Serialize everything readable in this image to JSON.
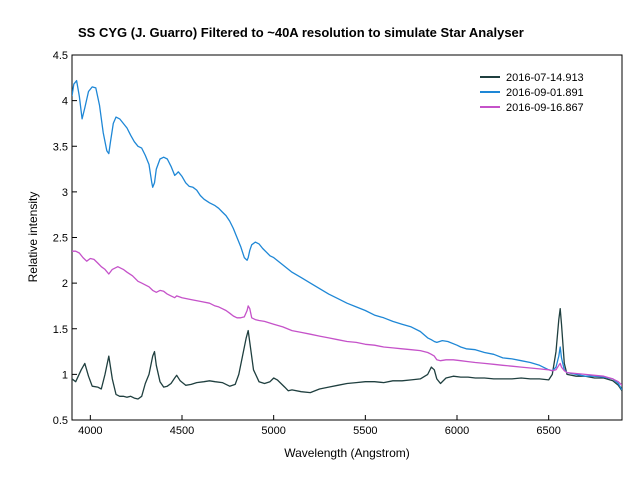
{
  "chart_data": {
    "type": "line",
    "title": "SS CYG    (J. Guarro)  Filtered to ~40A resolution to simulate Star Analyser",
    "xlabel": "Wavelength (Angstrom)",
    "ylabel": "Relative intensity",
    "xlim": [
      3900,
      6900
    ],
    "ylim": [
      0.5,
      4.5
    ],
    "xticks": [
      4000,
      4500,
      5000,
      5500,
      6000,
      6500
    ],
    "yticks": [
      0.5,
      1,
      1.5,
      2,
      2.5,
      3,
      3.5,
      4,
      4.5
    ],
    "xtick_labels": [
      "4000",
      "4500",
      "5000",
      "5500",
      "6000",
      "6500"
    ],
    "ytick_labels": [
      "0.5",
      "1",
      "1.5",
      "2",
      "2.5",
      "3",
      "3.5",
      "4",
      "4.5"
    ],
    "grid": false,
    "legend_position": "top-right",
    "series": [
      {
        "name": "2016-07-14.913",
        "color": "#1f3f3f",
        "x": [
          3900,
          3920,
          3950,
          3970,
          3990,
          4010,
          4040,
          4060,
          4080,
          4101,
          4120,
          4140,
          4160,
          4180,
          4200,
          4220,
          4240,
          4260,
          4280,
          4300,
          4320,
          4340,
          4350,
          4360,
          4380,
          4400,
          4420,
          4440,
          4460,
          4471,
          4490,
          4520,
          4550,
          4580,
          4620,
          4650,
          4680,
          4720,
          4760,
          4790,
          4810,
          4830,
          4850,
          4861,
          4870,
          4890,
          4920,
          4950,
          4980,
          5000,
          5020,
          5040,
          5060,
          5080,
          5100,
          5150,
          5200,
          5250,
          5300,
          5350,
          5400,
          5450,
          5500,
          5550,
          5600,
          5650,
          5700,
          5750,
          5800,
          5840,
          5860,
          5876,
          5890,
          5910,
          5940,
          5980,
          6020,
          6060,
          6100,
          6150,
          6200,
          6250,
          6300,
          6350,
          6400,
          6450,
          6500,
          6520,
          6540,
          6555,
          6563,
          6570,
          6585,
          6600,
          6650,
          6700,
          6750,
          6800,
          6850,
          6880,
          6900
        ],
        "values": [
          0.95,
          0.92,
          1.05,
          1.12,
          0.98,
          0.87,
          0.86,
          0.84,
          1.0,
          1.2,
          0.95,
          0.78,
          0.76,
          0.76,
          0.75,
          0.76,
          0.74,
          0.73,
          0.76,
          0.9,
          1.0,
          1.2,
          1.25,
          1.1,
          0.92,
          0.86,
          0.87,
          0.9,
          0.96,
          0.99,
          0.93,
          0.88,
          0.89,
          0.91,
          0.92,
          0.93,
          0.92,
          0.91,
          0.87,
          0.89,
          1.0,
          1.2,
          1.4,
          1.48,
          1.35,
          1.05,
          0.92,
          0.9,
          0.92,
          0.96,
          0.94,
          0.9,
          0.86,
          0.82,
          0.83,
          0.81,
          0.8,
          0.84,
          0.86,
          0.88,
          0.9,
          0.91,
          0.92,
          0.92,
          0.91,
          0.93,
          0.93,
          0.94,
          0.95,
          1.0,
          1.08,
          1.05,
          0.95,
          0.9,
          0.96,
          0.98,
          0.97,
          0.97,
          0.96,
          0.96,
          0.95,
          0.95,
          0.95,
          0.96,
          0.95,
          0.95,
          0.94,
          1.0,
          1.25,
          1.6,
          1.72,
          1.55,
          1.12,
          1.0,
          0.98,
          0.98,
          0.96,
          0.96,
          0.93,
          0.88,
          0.82
        ]
      },
      {
        "name": "2016-09-01.891",
        "color": "#1e87d6",
        "x": [
          3900,
          3910,
          3925,
          3940,
          3955,
          3970,
          3990,
          4010,
          4030,
          4050,
          4070,
          4090,
          4101,
          4110,
          4125,
          4140,
          4160,
          4180,
          4200,
          4220,
          4240,
          4260,
          4280,
          4300,
          4320,
          4335,
          4340,
          4350,
          4360,
          4380,
          4400,
          4420,
          4440,
          4460,
          4471,
          4480,
          4500,
          4520,
          4540,
          4560,
          4580,
          4600,
          4620,
          4650,
          4680,
          4700,
          4720,
          4740,
          4760,
          4780,
          4800,
          4820,
          4840,
          4855,
          4861,
          4870,
          4880,
          4900,
          4920,
          4940,
          4960,
          4980,
          5000,
          5050,
          5100,
          5150,
          5200,
          5250,
          5300,
          5350,
          5400,
          5450,
          5500,
          5550,
          5600,
          5650,
          5700,
          5750,
          5800,
          5840,
          5860,
          5876,
          5890,
          5920,
          5950,
          6000,
          6020,
          6050,
          6100,
          6150,
          6200,
          6250,
          6300,
          6350,
          6400,
          6450,
          6500,
          6520,
          6540,
          6555,
          6563,
          6570,
          6585,
          6600,
          6650,
          6700,
          6750,
          6800,
          6850,
          6880,
          6900
        ],
        "values": [
          4.05,
          4.18,
          4.22,
          4.05,
          3.8,
          3.92,
          4.1,
          4.15,
          4.14,
          3.95,
          3.65,
          3.45,
          3.42,
          3.55,
          3.75,
          3.82,
          3.8,
          3.75,
          3.7,
          3.62,
          3.55,
          3.5,
          3.48,
          3.4,
          3.3,
          3.1,
          3.05,
          3.1,
          3.25,
          3.36,
          3.38,
          3.36,
          3.28,
          3.18,
          3.2,
          3.22,
          3.17,
          3.1,
          3.06,
          3.05,
          3.02,
          2.96,
          2.92,
          2.88,
          2.85,
          2.82,
          2.78,
          2.74,
          2.68,
          2.6,
          2.5,
          2.4,
          2.28,
          2.25,
          2.28,
          2.36,
          2.42,
          2.45,
          2.43,
          2.38,
          2.34,
          2.3,
          2.28,
          2.2,
          2.12,
          2.06,
          2.0,
          1.94,
          1.88,
          1.83,
          1.78,
          1.74,
          1.7,
          1.65,
          1.62,
          1.58,
          1.55,
          1.52,
          1.47,
          1.4,
          1.38,
          1.36,
          1.35,
          1.37,
          1.36,
          1.32,
          1.3,
          1.28,
          1.27,
          1.24,
          1.22,
          1.18,
          1.17,
          1.15,
          1.13,
          1.1,
          1.05,
          1.04,
          1.08,
          1.2,
          1.3,
          1.18,
          1.05,
          1.02,
          1.0,
          0.98,
          0.98,
          0.97,
          0.95,
          0.9,
          0.83
        ]
      },
      {
        "name": "2016-09-16.867",
        "color": "#c552c9",
        "x": [
          3900,
          3920,
          3940,
          3960,
          3980,
          4000,
          4020,
          4040,
          4060,
          4080,
          4101,
          4120,
          4150,
          4180,
          4200,
          4230,
          4260,
          4280,
          4300,
          4320,
          4340,
          4360,
          4380,
          4400,
          4420,
          4440,
          4460,
          4471,
          4500,
          4550,
          4600,
          4650,
          4680,
          4700,
          4720,
          4740,
          4760,
          4780,
          4800,
          4820,
          4840,
          4855,
          4861,
          4870,
          4880,
          4900,
          4920,
          4950,
          5000,
          5050,
          5100,
          5150,
          5200,
          5250,
          5300,
          5350,
          5400,
          5450,
          5500,
          5550,
          5600,
          5650,
          5700,
          5750,
          5800,
          5840,
          5860,
          5876,
          5890,
          5910,
          5940,
          5980,
          6020,
          6060,
          6100,
          6150,
          6200,
          6250,
          6300,
          6350,
          6400,
          6450,
          6500,
          6520,
          6540,
          6555,
          6563,
          6570,
          6585,
          6600,
          6650,
          6700,
          6750,
          6800,
          6850,
          6880,
          6900
        ],
        "values": [
          2.35,
          2.35,
          2.33,
          2.28,
          2.24,
          2.27,
          2.26,
          2.22,
          2.18,
          2.15,
          2.1,
          2.15,
          2.18,
          2.15,
          2.12,
          2.08,
          2.02,
          2.0,
          1.98,
          1.96,
          1.92,
          1.9,
          1.92,
          1.91,
          1.88,
          1.86,
          1.84,
          1.86,
          1.84,
          1.82,
          1.8,
          1.78,
          1.75,
          1.74,
          1.72,
          1.7,
          1.67,
          1.64,
          1.62,
          1.62,
          1.63,
          1.7,
          1.75,
          1.72,
          1.62,
          1.6,
          1.59,
          1.58,
          1.55,
          1.52,
          1.48,
          1.46,
          1.44,
          1.42,
          1.4,
          1.38,
          1.36,
          1.35,
          1.33,
          1.32,
          1.3,
          1.29,
          1.28,
          1.27,
          1.26,
          1.24,
          1.22,
          1.2,
          1.16,
          1.15,
          1.16,
          1.16,
          1.15,
          1.14,
          1.13,
          1.12,
          1.11,
          1.1,
          1.09,
          1.08,
          1.07,
          1.06,
          1.05,
          1.04,
          1.05,
          1.1,
          1.12,
          1.08,
          1.04,
          1.02,
          1.01,
          1.0,
          0.99,
          0.98,
          0.95,
          0.92,
          0.88
        ]
      }
    ]
  }
}
